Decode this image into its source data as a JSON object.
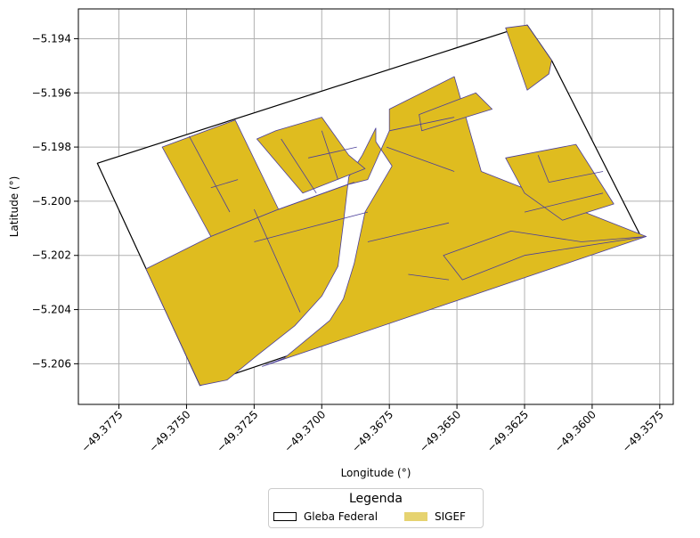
{
  "chart_data": {
    "type": "map",
    "xlabel": "Longitude (°)",
    "ylabel": "Latitude (°)",
    "xlim": [
      -49.379,
      -49.357
    ],
    "ylim": [
      -5.2075,
      -5.1929
    ],
    "xticks": [
      -49.3775,
      -49.375,
      -49.3725,
      -49.37,
      -49.3675,
      -49.365,
      -49.3625,
      -49.36,
      -49.3575
    ],
    "xtick_labels": [
      "−49.3775",
      "−49.3750",
      "−49.3725",
      "−49.3700",
      "−49.3675",
      "−49.3650",
      "−49.3625",
      "−49.3600",
      "−49.3575"
    ],
    "yticks": [
      -5.194,
      -5.196,
      -5.198,
      -5.2,
      -5.202,
      -5.204,
      -5.206
    ],
    "ytick_labels": [
      "−5.194",
      "−5.196",
      "−5.198",
      "−5.200",
      "−5.202",
      "−5.204",
      "−5.206"
    ],
    "grid": true,
    "legend": {
      "title": "Legenda",
      "placement": "bottom-center",
      "entries": [
        {
          "label": "Gleba Federal",
          "color": "#000000"
        },
        {
          "label": "SIGEF",
          "color": "#dfbc1f"
        }
      ]
    },
    "colors": {
      "sigef_fill": "#dfbc1f",
      "sigef_edge": "#4b3f9a",
      "gleba_edge": "#000000",
      "grid": "#b0b0b0"
    },
    "gleba_federal": [
      [
        -49.3783,
        -5.1986
      ],
      [
        -49.3624,
        -5.1935
      ],
      [
        -49.3615,
        -5.1948
      ],
      [
        -49.3582,
        -5.2013
      ],
      [
        -49.3745,
        -5.2068
      ]
    ],
    "sigef": [
      [
        [
          -49.3759,
          -5.198
        ],
        [
          -49.3732,
          -5.197
        ],
        [
          -49.3716,
          -5.2003
        ],
        [
          -49.3741,
          -5.2013
        ]
      ],
      [
        [
          -49.3765,
          -5.2025
        ],
        [
          -49.3741,
          -5.2013
        ],
        [
          -49.3716,
          -5.2003
        ],
        [
          -49.3691,
          -5.1994
        ],
        [
          -49.3683,
          -5.1992
        ],
        [
          -49.3675,
          -5.1974
        ],
        [
          -49.3675,
          -5.1966
        ],
        [
          -49.3651,
          -5.1954
        ],
        [
          -49.3641,
          -5.1989
        ],
        [
          -49.358,
          -5.2013
        ],
        [
          -49.3722,
          -5.2061
        ],
        [
          -49.3714,
          -5.2058
        ],
        [
          -49.3697,
          -5.2044
        ],
        [
          -49.3692,
          -5.2036
        ],
        [
          -49.3688,
          -5.2023
        ],
        [
          -49.3684,
          -5.2004
        ],
        [
          -49.3674,
          -5.1987
        ],
        [
          -49.368,
          -5.1978
        ],
        [
          -49.368,
          -5.1973
        ],
        [
          -49.3685,
          -5.1983
        ],
        [
          -49.369,
          -5.1991
        ],
        [
          -49.3692,
          -5.2008
        ],
        [
          -49.3694,
          -5.2024
        ],
        [
          -49.37,
          -5.2035
        ],
        [
          -49.371,
          -5.2046
        ],
        [
          -49.3724,
          -5.2057
        ],
        [
          -49.3735,
          -5.2066
        ],
        [
          -49.3745,
          -5.2068
        ]
      ],
      [
        [
          -49.3724,
          -5.1977
        ],
        [
          -49.3717,
          -5.1974
        ],
        [
          -49.37,
          -5.1969
        ],
        [
          -49.369,
          -5.1983
        ],
        [
          -49.3684,
          -5.1988
        ],
        [
          -49.3707,
          -5.1997
        ]
      ],
      [
        [
          -49.3664,
          -5.1968
        ],
        [
          -49.3643,
          -5.196
        ],
        [
          -49.3637,
          -5.1966
        ],
        [
          -49.3663,
          -5.1974
        ]
      ],
      [
        [
          -49.3632,
          -5.1936
        ],
        [
          -49.3624,
          -5.1935
        ],
        [
          -49.3615,
          -5.1948
        ],
        [
          -49.3616,
          -5.1953
        ],
        [
          -49.3624,
          -5.1959
        ]
      ],
      [
        [
          -49.3632,
          -5.1984
        ],
        [
          -49.3606,
          -5.1979
        ],
        [
          -49.3592,
          -5.2001
        ],
        [
          -49.3611,
          -5.2007
        ],
        [
          -49.3625,
          -5.1997
        ]
      ],
      [
        [
          -49.3655,
          -5.202
        ],
        [
          -49.363,
          -5.2011
        ],
        [
          -49.3604,
          -5.2015
        ],
        [
          -49.358,
          -5.2013
        ],
        [
          -49.3625,
          -5.202
        ],
        [
          -49.3648,
          -5.2029
        ]
      ]
    ],
    "sigef_boundaries": [
      [
        [
          -49.3749,
          -5.1976
        ],
        [
          -49.3734,
          -5.2004
        ]
      ],
      [
        [
          -49.3741,
          -5.1995
        ],
        [
          -49.3731,
          -5.1992
        ]
      ],
      [
        [
          -49.3716,
          -5.2003
        ],
        [
          -49.3688,
          -5.1993
        ]
      ],
      [
        [
          -49.3725,
          -5.2015
        ],
        [
          -49.3683,
          -5.2004
        ]
      ],
      [
        [
          -49.3725,
          -5.2003
        ],
        [
          -49.3708,
          -5.2041
        ]
      ],
      [
        [
          -49.3683,
          -5.2015
        ],
        [
          -49.3653,
          -5.2008
        ]
      ],
      [
        [
          -49.3668,
          -5.2027
        ],
        [
          -49.3653,
          -5.2029
        ]
      ],
      [
        [
          -49.3715,
          -5.1977
        ],
        [
          -49.3702,
          -5.1997
        ]
      ],
      [
        [
          -49.37,
          -5.1974
        ],
        [
          -49.3694,
          -5.1992
        ]
      ],
      [
        [
          -49.3705,
          -5.1984
        ],
        [
          -49.3687,
          -5.198
        ]
      ],
      [
        [
          -49.3675,
          -5.1974
        ],
        [
          -49.3651,
          -5.1969
        ]
      ],
      [
        [
          -49.3676,
          -5.198
        ],
        [
          -49.3651,
          -5.1989
        ]
      ],
      [
        [
          -49.362,
          -5.1983
        ],
        [
          -49.3616,
          -5.1993
        ]
      ],
      [
        [
          -49.3616,
          -5.1993
        ],
        [
          -49.3596,
          -5.1989
        ]
      ],
      [
        [
          -49.3625,
          -5.2004
        ],
        [
          -49.3596,
          -5.1997
        ]
      ]
    ]
  }
}
